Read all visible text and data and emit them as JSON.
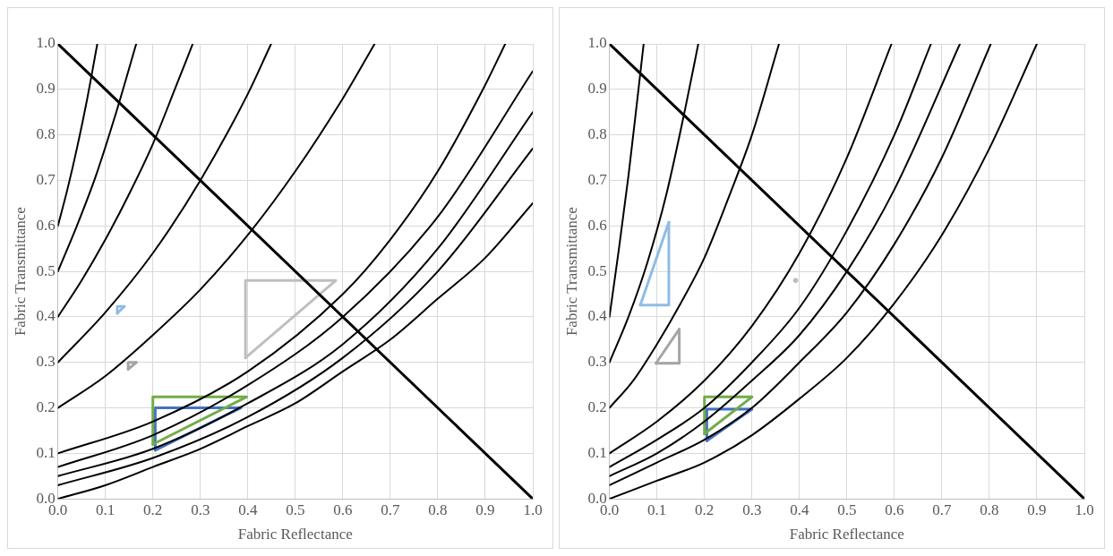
{
  "chart_data": [
    {
      "type": "line",
      "xlabel": "Fabric Reflectance",
      "ylabel": "Fabric Transmittance",
      "xlim": [
        0,
        1
      ],
      "ylim": [
        0,
        1
      ],
      "xticks": [
        {
          "value": 0,
          "label": "0.0"
        },
        {
          "value": 0.1,
          "label": "0.1"
        },
        {
          "value": 0.2,
          "label": "0.2"
        },
        {
          "value": 0.3,
          "label": "0.3"
        },
        {
          "value": 0.4,
          "label": "0.4"
        },
        {
          "value": 0.5,
          "label": "0.5"
        },
        {
          "value": 0.6,
          "label": "0.6"
        },
        {
          "value": 0.7,
          "label": "0.7"
        },
        {
          "value": 0.8,
          "label": "0.8"
        },
        {
          "value": 0.9,
          "label": "0.9"
        },
        {
          "value": 1,
          "label": "1.0"
        }
      ],
      "yticks": [
        {
          "value": 0,
          "label": "0.0"
        },
        {
          "value": 0.1,
          "label": "0.1"
        },
        {
          "value": 0.2,
          "label": "0.2"
        },
        {
          "value": 0.3,
          "label": "0.3"
        },
        {
          "value": 0.4,
          "label": "0.4"
        },
        {
          "value": 0.5,
          "label": "0.5"
        },
        {
          "value": 0.6,
          "label": "0.6"
        },
        {
          "value": 0.7,
          "label": "0.7"
        },
        {
          "value": 0.8,
          "label": "0.8"
        },
        {
          "value": 0.9,
          "label": "0.9"
        },
        {
          "value": 1,
          "label": "1.0"
        }
      ],
      "grid": true,
      "legend": false,
      "marker": "none",
      "line_style": "solid",
      "series": [
        {
          "color": "#000000",
          "x": [
            0,
            0.02,
            0.04,
            0.06,
            0.083
          ],
          "values": [
            0.6,
            0.68,
            0.77,
            0.87,
            1
          ]
        },
        {
          "color": "#000000",
          "x": [
            0,
            0.04,
            0.08,
            0.12,
            0.165
          ],
          "values": [
            0.5,
            0.6,
            0.71,
            0.84,
            1
          ]
        },
        {
          "color": "#000000",
          "x": [
            0,
            0.05,
            0.1,
            0.15,
            0.2,
            0.25,
            0.284
          ],
          "values": [
            0.4,
            0.48,
            0.57,
            0.67,
            0.78,
            0.91,
            1
          ]
        },
        {
          "color": "#000000",
          "x": [
            0,
            0.1,
            0.2,
            0.3,
            0.4,
            0.449
          ],
          "values": [
            0.3,
            0.41,
            0.54,
            0.7,
            0.89,
            1
          ]
        },
        {
          "color": "#000000",
          "x": [
            0,
            0.1,
            0.2,
            0.3,
            0.4,
            0.5,
            0.6,
            0.667
          ],
          "values": [
            0.2,
            0.27,
            0.36,
            0.46,
            0.58,
            0.72,
            0.88,
            1
          ]
        },
        {
          "color": "#000000",
          "x": [
            0,
            0.2,
            0.4,
            0.6,
            0.7,
            0.8,
            0.9,
            0.942
          ],
          "values": [
            0.1,
            0.17,
            0.28,
            0.45,
            0.57,
            0.72,
            0.91,
            1
          ]
        },
        {
          "color": "#000000",
          "x": [
            0,
            0.2,
            0.4,
            0.6,
            0.8,
            1
          ],
          "values": [
            0.07,
            0.14,
            0.25,
            0.4,
            0.62,
            0.94
          ]
        },
        {
          "color": "#000000",
          "x": [
            0,
            0.2,
            0.4,
            0.6,
            0.8,
            1
          ],
          "values": [
            0.05,
            0.11,
            0.21,
            0.34,
            0.55,
            0.85
          ]
        },
        {
          "color": "#000000",
          "x": [
            0,
            0.2,
            0.4,
            0.6,
            0.8,
            1
          ],
          "values": [
            0.03,
            0.09,
            0.18,
            0.31,
            0.5,
            0.77
          ]
        },
        {
          "color": "#000000",
          "x": [
            0,
            0.1,
            0.2,
            0.3,
            0.4,
            0.5,
            0.6,
            0.7,
            0.8,
            0.9,
            1
          ],
          "values": [
            0,
            0.03,
            0.07,
            0.11,
            0.16,
            0.21,
            0.28,
            0.35,
            0.44,
            0.53,
            0.65
          ]
        },
        {
          "color": "#000000",
          "x": [
            0,
            1
          ],
          "values": [
            1,
            0
          ]
        },
        {
          "color": "#bfbfbf",
          "x": [
            0.395,
            0.395,
            0.585
          ],
          "values": [
            0.31,
            0.48,
            0.48
          ]
        },
        {
          "color": "#bfbfbf",
          "x": [
            0.395,
            0.585
          ],
          "values": [
            0.31,
            0.48
          ]
        },
        {
          "color": "#70ad47",
          "x": [
            0.2,
            0.2,
            0.397
          ],
          "values": [
            0.12,
            0.224,
            0.224
          ]
        },
        {
          "color": "#70ad47",
          "x": [
            0.2,
            0.397
          ],
          "values": [
            0.12,
            0.224
          ]
        },
        {
          "color": "#4472c4",
          "x": [
            0.205,
            0.205,
            0.385
          ],
          "values": [
            0.107,
            0.2,
            0.2
          ]
        },
        {
          "color": "#4472c4",
          "x": [
            0.205,
            0.385
          ],
          "values": [
            0.107,
            0.2
          ]
        },
        {
          "color": "#8fbce6",
          "x": [
            0.125,
            0.125,
            0.14
          ],
          "values": [
            0.408,
            0.423,
            0.423
          ]
        },
        {
          "color": "#8fbce6",
          "x": [
            0.125,
            0.14
          ],
          "values": [
            0.408,
            0.423
          ]
        },
        {
          "color": "#a5a5a5",
          "x": [
            0.148,
            0.148,
            0.165
          ],
          "values": [
            0.285,
            0.3,
            0.3
          ]
        },
        {
          "color": "#a5a5a5",
          "x": [
            0.148,
            0.165
          ],
          "values": [
            0.285,
            0.3
          ]
        }
      ]
    },
    {
      "type": "line",
      "xlabel": "Fabric Reflectance",
      "ylabel": "Fabric Transmittance",
      "xlim": [
        0,
        1
      ],
      "ylim": [
        0,
        1
      ],
      "xticks": [
        {
          "value": 0,
          "label": "0.0"
        },
        {
          "value": 0.1,
          "label": "0.1"
        },
        {
          "value": 0.2,
          "label": "0.2"
        },
        {
          "value": 0.3,
          "label": "0.3"
        },
        {
          "value": 0.4,
          "label": "0.4"
        },
        {
          "value": 0.5,
          "label": "0.5"
        },
        {
          "value": 0.6,
          "label": "0.6"
        },
        {
          "value": 0.7,
          "label": "0.7"
        },
        {
          "value": 0.8,
          "label": "0.8"
        },
        {
          "value": 0.9,
          "label": "0.9"
        },
        {
          "value": 1,
          "label": "1.0"
        }
      ],
      "yticks": [
        {
          "value": 0,
          "label": "0.0"
        },
        {
          "value": 0.1,
          "label": "0.1"
        },
        {
          "value": 0.2,
          "label": "0.2"
        },
        {
          "value": 0.3,
          "label": "0.3"
        },
        {
          "value": 0.4,
          "label": "0.4"
        },
        {
          "value": 0.5,
          "label": "0.5"
        },
        {
          "value": 0.6,
          "label": "0.6"
        },
        {
          "value": 0.7,
          "label": "0.7"
        },
        {
          "value": 0.8,
          "label": "0.8"
        },
        {
          "value": 0.9,
          "label": "0.9"
        },
        {
          "value": 1,
          "label": "1.0"
        }
      ],
      "grid": true,
      "legend": false,
      "marker": "none",
      "line_style": "solid",
      "series": [
        {
          "color": "#000000",
          "x": [
            0,
            0.02,
            0.04,
            0.06,
            0.072
          ],
          "values": [
            0.4,
            0.55,
            0.71,
            0.89,
            1
          ]
        },
        {
          "color": "#000000",
          "x": [
            0,
            0.04,
            0.08,
            0.12,
            0.16,
            0.187
          ],
          "values": [
            0.3,
            0.4,
            0.52,
            0.67,
            0.86,
            1
          ]
        },
        {
          "color": "#000000",
          "x": [
            0,
            0.05,
            0.1,
            0.15,
            0.2,
            0.25,
            0.3,
            0.357
          ],
          "values": [
            0.2,
            0.26,
            0.34,
            0.43,
            0.53,
            0.66,
            0.8,
            1
          ]
        },
        {
          "color": "#000000",
          "x": [
            0,
            0.1,
            0.2,
            0.3,
            0.4,
            0.5,
            0.594
          ],
          "values": [
            0.1,
            0.17,
            0.26,
            0.38,
            0.54,
            0.75,
            1
          ]
        },
        {
          "color": "#000000",
          "x": [
            0,
            0.1,
            0.2,
            0.3,
            0.4,
            0.5,
            0.6,
            0.677
          ],
          "values": [
            0.07,
            0.13,
            0.2,
            0.3,
            0.42,
            0.59,
            0.8,
            1
          ]
        },
        {
          "color": "#000000",
          "x": [
            0,
            0.1,
            0.2,
            0.3,
            0.4,
            0.5,
            0.6,
            0.738
          ],
          "values": [
            0.05,
            0.1,
            0.17,
            0.26,
            0.36,
            0.5,
            0.68,
            1
          ]
        },
        {
          "color": "#000000",
          "x": [
            0,
            0.1,
            0.2,
            0.3,
            0.4,
            0.5,
            0.6,
            0.7,
            0.803
          ],
          "values": [
            0.03,
            0.08,
            0.13,
            0.2,
            0.3,
            0.41,
            0.56,
            0.75,
            1
          ]
        },
        {
          "color": "#000000",
          "x": [
            0,
            0.1,
            0.2,
            0.3,
            0.4,
            0.5,
            0.6,
            0.7,
            0.8,
            0.9
          ],
          "values": [
            0,
            0.04,
            0.08,
            0.14,
            0.22,
            0.31,
            0.43,
            0.58,
            0.77,
            1
          ]
        },
        {
          "color": "#000000",
          "x": [
            0,
            1
          ],
          "values": [
            1,
            0
          ]
        },
        {
          "color": "#8fbce6",
          "x": [
            0.065,
            0.125,
            0.125
          ],
          "values": [
            0.426,
            0.426,
            0.608
          ]
        },
        {
          "color": "#8fbce6",
          "x": [
            0.065,
            0.125
          ],
          "values": [
            0.426,
            0.608
          ]
        },
        {
          "color": "#a5a5a5",
          "x": [
            0.098,
            0.147,
            0.147
          ],
          "values": [
            0.298,
            0.298,
            0.373
          ]
        },
        {
          "color": "#a5a5a5",
          "x": [
            0.098,
            0.147
          ],
          "values": [
            0.298,
            0.373
          ]
        },
        {
          "color": "#70ad47",
          "x": [
            0.2,
            0.2,
            0.3
          ],
          "values": [
            0.143,
            0.224,
            0.224
          ]
        },
        {
          "color": "#70ad47",
          "x": [
            0.2,
            0.3
          ],
          "values": [
            0.143,
            0.224
          ]
        },
        {
          "color": "#4472c4",
          "x": [
            0.205,
            0.205,
            0.3
          ],
          "values": [
            0.128,
            0.197,
            0.197
          ]
        },
        {
          "color": "#4472c4",
          "x": [
            0.205,
            0.3
          ],
          "values": [
            0.128,
            0.197
          ]
        },
        {
          "type": "scatter",
          "color": "#bfbfbf",
          "marker": "circle",
          "x": [
            0.392
          ],
          "values": [
            0.48
          ]
        }
      ]
    }
  ]
}
